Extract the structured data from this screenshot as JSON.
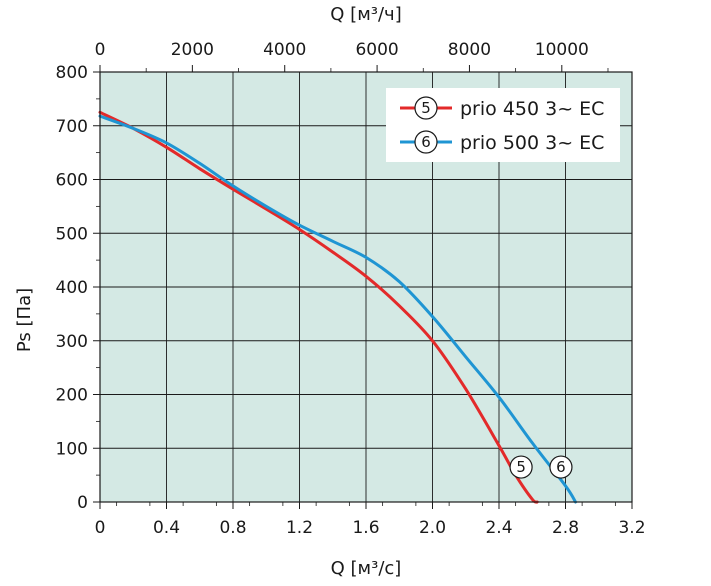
{
  "chart_data": {
    "type": "line",
    "x_bottom": {
      "label": "Q [м³/с]",
      "ticks": [
        "0",
        "0.4",
        "0.8",
        "1.2",
        "1.6",
        "2.0",
        "2.4",
        "2.8",
        "3.2"
      ],
      "range": [
        0,
        3.2
      ]
    },
    "x_top": {
      "label": "Q [м³/ч]",
      "ticks": [
        "0",
        "2000",
        "4000",
        "6000",
        "8000",
        "10000"
      ],
      "range": [
        0,
        11520
      ]
    },
    "y": {
      "label": "Ps [Па]",
      "ticks": [
        "0",
        "100",
        "200",
        "300",
        "400",
        "500",
        "600",
        "700",
        "800"
      ],
      "range": [
        0,
        800
      ]
    },
    "grid": true,
    "legend_position": "top-right",
    "series": [
      {
        "id": "5",
        "name": "prio 450 3~ EC",
        "color": "#e32a2a",
        "x": [
          0,
          0.2,
          0.4,
          0.6,
          0.8,
          1.0,
          1.2,
          1.4,
          1.6,
          1.8,
          2.0,
          2.2,
          2.4,
          2.5,
          2.6,
          2.63
        ],
        "y": [
          725,
          695,
          660,
          620,
          582,
          545,
          507,
          465,
          420,
          365,
          300,
          210,
          105,
          50,
          5,
          0
        ]
      },
      {
        "id": "6",
        "name": "prio 500 3~ EC",
        "color": "#1f95d3",
        "x": [
          0,
          0.2,
          0.4,
          0.6,
          0.8,
          1.0,
          1.2,
          1.4,
          1.6,
          1.8,
          2.0,
          2.2,
          2.4,
          2.6,
          2.8,
          2.86
        ],
        "y": [
          718,
          695,
          668,
          630,
          588,
          550,
          515,
          485,
          455,
          410,
          345,
          270,
          195,
          110,
          30,
          0
        ]
      }
    ]
  }
}
